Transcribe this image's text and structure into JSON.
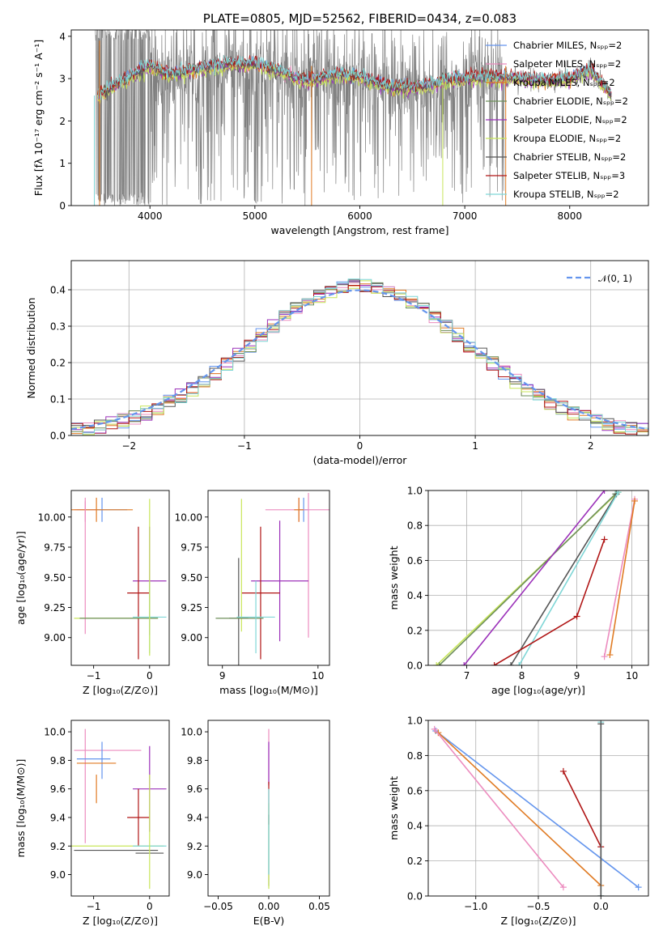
{
  "colors": {
    "chabrier_miles": "#6495ed",
    "salpeter_miles": "#ec8cbf",
    "kroupa_miles": "#e07b24",
    "chabrier_elodie": "#6e8f5a",
    "salpeter_elodie": "#9b30b9",
    "kroupa_elodie": "#c8e65a",
    "chabrier_stelib": "#555555",
    "salpeter_stelib": "#b01515",
    "kroupa_stelib": "#7fd6d6",
    "data": "#808080"
  },
  "chart_data": [
    {
      "type": "line",
      "title": "PLATE=0805, MJD=52562, FIBERID=0434, z=0.083",
      "xlabel": "wavelength [Angstrom, rest frame]",
      "ylabel": "Flux [fλ 10⁻¹⁷ erg cm⁻² s⁻¹ A⁻¹]",
      "xlim": [
        3250,
        8750
      ],
      "ylim": [
        0,
        4.15
      ],
      "xticks": [
        4000,
        5000,
        6000,
        7000,
        8000
      ],
      "yticks": [
        0,
        1,
        2,
        3,
        4
      ],
      "legend_position": "top-right",
      "data_range": [
        3480,
        8400
      ],
      "continuum": [
        [
          3500,
          2.6
        ],
        [
          3700,
          2.9
        ],
        [
          4000,
          3.3
        ],
        [
          4200,
          3.1
        ],
        [
          4500,
          3.25
        ],
        [
          4800,
          3.35
        ],
        [
          5000,
          3.35
        ],
        [
          5200,
          3.2
        ],
        [
          5500,
          2.95
        ],
        [
          5800,
          3.1
        ],
        [
          6000,
          3.05
        ],
        [
          6300,
          2.8
        ],
        [
          6600,
          2.8
        ],
        [
          6800,
          2.95
        ],
        [
          7000,
          3.0
        ],
        [
          7200,
          3.05
        ],
        [
          7500,
          3.0
        ],
        [
          7800,
          2.95
        ],
        [
          8000,
          3.0
        ],
        [
          8200,
          3.2
        ],
        [
          8400,
          2.6
        ]
      ],
      "series": [
        {
          "name": "Chabrier MILES, Nₛₚₚ=2",
          "key": "chabrier_miles"
        },
        {
          "name": "Salpeter MILES, Nₛₚₚ=2",
          "key": "salpeter_miles"
        },
        {
          "name": "Kroupa MILES, Nₛₚₚ=2",
          "key": "kroupa_miles"
        },
        {
          "name": "Chabrier ELODIE, Nₛₚₚ=2",
          "key": "chabrier_elodie"
        },
        {
          "name": "Salpeter ELODIE, Nₛₚₚ=2",
          "key": "salpeter_elodie"
        },
        {
          "name": "Kroupa ELODIE, Nₛₚₚ=2",
          "key": "kroupa_elodie"
        },
        {
          "name": "Chabrier STELIB, Nₛₚₚ=2",
          "key": "chabrier_stelib"
        },
        {
          "name": "Salpeter STELIB, Nₛₚₚ=3",
          "key": "salpeter_stelib"
        },
        {
          "name": "Kroupa STELIB, Nₛₚₚ=2",
          "key": "kroupa_stelib"
        }
      ]
    },
    {
      "type": "area",
      "xlabel": "(data-model)/error",
      "ylabel": "Normed distribution",
      "xlim": [
        -2.5,
        2.5
      ],
      "ylim": [
        0,
        0.48
      ],
      "xticks": [
        -2,
        -1,
        0,
        1,
        2
      ],
      "yticks": [
        0.0,
        0.1,
        0.2,
        0.3,
        0.4
      ],
      "grid": true,
      "legend": "𝒩(0, 1)",
      "legend_position": "top-right",
      "gaussian": {
        "mean": 0,
        "sigma": 1,
        "color": "#6495ed"
      },
      "histogram_bin_width": 0.1
    },
    {
      "type": "scatter",
      "xlabel": "Z [log₁₀(Z/Z⊙)]",
      "ylabel": "age  [log₁₀(age/yr)]",
      "xlim": [
        -1.4,
        0.35
      ],
      "ylim": [
        8.77,
        10.22
      ],
      "xticks": [
        -1,
        0
      ],
      "yticks": [
        9.0,
        9.25,
        9.5,
        9.75,
        10.0
      ],
      "ytick_labels": [
        "9.00",
        "9.25",
        "9.50",
        "9.75",
        "10.00"
      ],
      "points": [
        {
          "key": "chabrier_miles",
          "x": -0.85,
          "y": 10.06,
          "xerr": 0.45,
          "yerr": 0.1
        },
        {
          "key": "salpeter_miles",
          "x": -1.15,
          "y": 10.06,
          "xerr": 0.2,
          "yerr": 0.1
        },
        {
          "key": "kroupa_miles",
          "x": -0.95,
          "y": 10.06,
          "xerr": 0.65,
          "yerr": 0.1
        },
        {
          "key": "salpeter_miles",
          "x": -1.15,
          "y": 9.58,
          "xerr": 0.0,
          "yerr": 0.55
        },
        {
          "key": "salpeter_elodie",
          "x": 0.0,
          "y": 9.47,
          "xerr": 0.3,
          "yerr": 0.45
        },
        {
          "key": "salpeter_stelib",
          "x": -0.2,
          "y": 9.37,
          "xerr": 0.2,
          "yerr": 0.55
        },
        {
          "key": "kroupa_elodie",
          "x": -0.6,
          "y": 9.16,
          "xerr": 0.75,
          "yerr": 0.0
        },
        {
          "key": "chabrier_elodie",
          "x": -0.55,
          "y": 9.16,
          "xerr": 0.7,
          "yerr": 0.0
        },
        {
          "key": "kroupa_stelib",
          "x": 0.0,
          "y": 9.17,
          "xerr": 0.3,
          "yerr": 0.3
        },
        {
          "key": "kroupa_elodie",
          "x": 0.0,
          "y": 9.5,
          "xerr": 0.0,
          "yerr": 0.65
        }
      ]
    },
    {
      "type": "scatter",
      "xlabel": "mass [log₁₀(M/M⊙)]",
      "ylabel": "",
      "xlim": [
        8.85,
        10.12
      ],
      "ylim": [
        8.77,
        10.22
      ],
      "xticks": [
        9,
        10
      ],
      "yticks": [
        9.0,
        9.25,
        9.5,
        9.75,
        10.0
      ],
      "ytick_labels": [
        "9.00",
        "9.25",
        "9.50",
        "9.75",
        "10.00"
      ],
      "points": [
        {
          "key": "chabrier_miles",
          "x": 9.85,
          "y": 10.06,
          "xerr": 0.05,
          "yerr": 0.1
        },
        {
          "key": "salpeter_miles",
          "x": 9.8,
          "y": 10.06,
          "xerr": 0.35,
          "yerr": 0.1
        },
        {
          "key": "kroupa_miles",
          "x": 9.8,
          "y": 10.06,
          "xerr": 0.05,
          "yerr": 0.1
        },
        {
          "key": "salpeter_miles",
          "x": 9.9,
          "y": 9.6,
          "xerr": 0.0,
          "yerr": 0.6
        },
        {
          "key": "salpeter_elodie",
          "x": 9.6,
          "y": 9.47,
          "xerr": 0.3,
          "yerr": 0.5
        },
        {
          "key": "salpeter_stelib",
          "x": 9.4,
          "y": 9.37,
          "xerr": 0.2,
          "yerr": 0.55
        },
        {
          "key": "chabrier_stelib",
          "x": 9.17,
          "y": 9.16,
          "xerr": 0.1,
          "yerr": 0.5
        },
        {
          "key": "kroupa_elodie",
          "x": 9.2,
          "y": 9.6,
          "xerr": 0.0,
          "yerr": 0.55
        },
        {
          "key": "chabrier_elodie",
          "x": 9.18,
          "y": 9.16,
          "xerr": 0.25,
          "yerr": 0.0
        },
        {
          "key": "kroupa_stelib",
          "x": 9.35,
          "y": 9.17,
          "xerr": 0.2,
          "yerr": 0.3
        }
      ]
    },
    {
      "type": "line",
      "xlabel": "age  [log₁₀(age/yr)]",
      "ylabel": "mass weight",
      "xlim": [
        6.3,
        10.3
      ],
      "ylim": [
        0,
        1.0
      ],
      "xticks": [
        7,
        8,
        9,
        10
      ],
      "yticks": [
        0.0,
        0.2,
        0.4,
        0.6,
        0.8,
        1.0
      ],
      "grid": true,
      "series": [
        {
          "key": "kroupa_elodie",
          "x": [
            6.45,
            9.75
          ],
          "y": [
            0.0,
            0.99
          ]
        },
        {
          "key": "chabrier_elodie",
          "x": [
            6.5,
            9.7
          ],
          "y": [
            0.0,
            0.98
          ]
        },
        {
          "key": "salpeter_elodie",
          "x": [
            6.95,
            9.5
          ],
          "y": [
            0.0,
            1.0
          ]
        },
        {
          "key": "chabrier_stelib",
          "x": [
            7.8,
            9.72
          ],
          "y": [
            0.0,
            0.98
          ]
        },
        {
          "key": "kroupa_stelib",
          "x": [
            7.95,
            9.75
          ],
          "y": [
            0.0,
            0.99
          ]
        },
        {
          "key": "salpeter_stelib",
          "x": [
            7.5,
            9.0,
            9.5
          ],
          "y": [
            0.0,
            0.28,
            0.72
          ]
        },
        {
          "key": "salpeter_miles",
          "x": [
            9.5,
            10.05
          ],
          "y": [
            0.05,
            0.95
          ]
        },
        {
          "key": "kroupa_miles",
          "x": [
            9.6,
            10.05
          ],
          "y": [
            0.06,
            0.94
          ]
        }
      ]
    },
    {
      "type": "scatter",
      "xlabel": "Z [log₁₀(Z/Z⊙)]",
      "ylabel": "mass [log₁₀(M/M⊙)]",
      "xlim": [
        -1.4,
        0.35
      ],
      "ylim": [
        8.85,
        10.08
      ],
      "xticks": [
        -1,
        0
      ],
      "yticks": [
        9.0,
        9.2,
        9.4,
        9.6,
        9.8,
        10.0
      ],
      "ytick_labels": [
        "9.0",
        "9.2",
        "9.4",
        "9.6",
        "9.8",
        "10.0"
      ],
      "points": [
        {
          "key": "salpeter_miles",
          "x": -0.75,
          "y": 9.87,
          "xerr": 0.6,
          "yerr": 0.0
        },
        {
          "key": "salpeter_miles",
          "x": -1.15,
          "y": 9.62,
          "xerr": 0.0,
          "yerr": 0.4
        },
        {
          "key": "chabrier_miles",
          "x": -1.0,
          "y": 9.81,
          "xerr": 0.3,
          "yerr": 0.0
        },
        {
          "key": "chabrier_miles",
          "x": -0.85,
          "y": 9.8,
          "xerr": 0.0,
          "yerr": 0.13
        },
        {
          "key": "kroupa_miles",
          "x": -0.95,
          "y": 9.78,
          "xerr": 0.35,
          "yerr": 0.0
        },
        {
          "key": "kroupa_miles",
          "x": -0.95,
          "y": 9.6,
          "xerr": 0.0,
          "yerr": 0.1
        },
        {
          "key": "salpeter_elodie",
          "x": 0.0,
          "y": 9.6,
          "xerr": 0.3,
          "yerr": 0.3
        },
        {
          "key": "salpeter_stelib",
          "x": -0.2,
          "y": 9.4,
          "xerr": 0.2,
          "yerr": 0.2
        },
        {
          "key": "kroupa_elodie",
          "x": -0.6,
          "y": 9.2,
          "xerr": 0.85,
          "yerr": 0.0
        },
        {
          "key": "chabrier_stelib",
          "x": -0.6,
          "y": 9.17,
          "xerr": 0.75,
          "yerr": 0.0
        },
        {
          "key": "chabrier_stelib",
          "x": 0.0,
          "y": 9.15,
          "xerr": 0.25,
          "yerr": 0.0
        },
        {
          "key": "kroupa_stelib",
          "x": 0.0,
          "y": 9.2,
          "xerr": 0.3,
          "yerr": 0.0
        },
        {
          "key": "kroupa_elodie",
          "x": 0.0,
          "y": 9.3,
          "xerr": 0.0,
          "yerr": 0.4
        }
      ]
    },
    {
      "type": "scatter",
      "xlabel": "E(B-V)",
      "ylabel": "",
      "xlim": [
        -0.06,
        0.06
      ],
      "ylim": [
        8.85,
        10.08
      ],
      "xticks": [
        -0.05,
        0.0,
        0.05
      ],
      "xtick_labels": [
        "−0.05",
        "0.00",
        "0.05"
      ],
      "yticks": [
        9.0,
        9.2,
        9.4,
        9.6,
        9.8,
        10.0
      ],
      "ytick_labels": [
        "9.0",
        "9.2",
        "9.4",
        "9.6",
        "9.8",
        "10.0"
      ],
      "points": [
        {
          "key": "salpeter_miles",
          "x": 0.0,
          "y": 9.82,
          "yerr": 0.2
        },
        {
          "key": "salpeter_elodie",
          "x": 0.0,
          "y": 9.78,
          "yerr": 0.15
        },
        {
          "key": "salpeter_stelib",
          "x": 0.0,
          "y": 9.5,
          "yerr": 0.15
        },
        {
          "key": "chabrier_stelib",
          "x": 0.0,
          "y": 9.17,
          "yerr": 0.25
        },
        {
          "key": "kroupa_elodie",
          "x": 0.0,
          "y": 9.2,
          "yerr": 0.3
        },
        {
          "key": "kroupa_stelib",
          "x": 0.0,
          "y": 9.3,
          "yerr": 0.3
        }
      ]
    },
    {
      "type": "line",
      "xlabel": "Z [log₁₀(Z/Z⊙)]",
      "ylabel": "mass weight",
      "xlim": [
        -1.38,
        0.38
      ],
      "ylim": [
        0,
        1.0
      ],
      "xticks": [
        -1.0,
        -0.5,
        0.0
      ],
      "xtick_labels": [
        "−1.0",
        "−0.5",
        "0.0"
      ],
      "yticks": [
        0.0,
        0.2,
        0.4,
        0.6,
        0.8,
        1.0
      ],
      "grid": true,
      "series": [
        {
          "key": "chabrier_miles",
          "x": [
            -1.32,
            0.3
          ],
          "y": [
            0.94,
            0.05
          ]
        },
        {
          "key": "kroupa_miles",
          "x": [
            -1.3,
            0.0
          ],
          "y": [
            0.93,
            0.06
          ]
        },
        {
          "key": "salpeter_miles",
          "x": [
            -1.33,
            -0.3
          ],
          "y": [
            0.95,
            0.05
          ]
        },
        {
          "key": "salpeter_stelib",
          "x": [
            -0.3,
            0.0
          ],
          "y": [
            0.71,
            0.28
          ]
        },
        {
          "key": "kroupa_stelib",
          "x": [
            0.0,
            0.0
          ],
          "y": [
            0.0,
            0.99
          ]
        },
        {
          "key": "chabrier_stelib",
          "x": [
            0.0,
            0.0
          ],
          "y": [
            0.0,
            0.98
          ]
        }
      ]
    }
  ]
}
